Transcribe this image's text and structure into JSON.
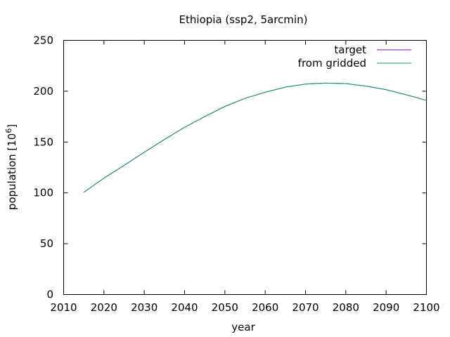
{
  "chart_data": {
    "type": "line",
    "title": "Ethiopia (ssp2, 5arcmin)",
    "xlabel": "year",
    "ylabel_main": "population [10",
    "ylabel_exp": "6",
    "ylabel_close": "]",
    "xlim": [
      2010,
      2100
    ],
    "ylim": [
      0,
      250
    ],
    "xticks": [
      2010,
      2020,
      2030,
      2040,
      2050,
      2060,
      2070,
      2080,
      2090,
      2100
    ],
    "yticks": [
      0,
      50,
      100,
      150,
      200,
      250
    ],
    "legend_position": "top-right",
    "grid": false,
    "series": [
      {
        "name": "target",
        "color": "#9400d3",
        "x": [
          2015,
          2020,
          2025,
          2030,
          2035,
          2040,
          2045,
          2050,
          2055,
          2060,
          2065,
          2070,
          2075,
          2080,
          2085,
          2090,
          2095,
          2100
        ],
        "y": [
          100.5,
          114.5,
          127,
          140,
          152.5,
          164.5,
          175,
          185,
          193,
          199,
          204,
          207,
          208,
          207.5,
          205,
          201.5,
          196.5,
          191
        ]
      },
      {
        "name": "from gridded",
        "color": "#009e73",
        "x": [
          2015,
          2020,
          2025,
          2030,
          2035,
          2040,
          2045,
          2050,
          2055,
          2060,
          2065,
          2070,
          2075,
          2080,
          2085,
          2090,
          2095,
          2100
        ],
        "y": [
          100.5,
          114.5,
          127,
          140,
          152.5,
          164.5,
          175,
          185,
          193,
          199,
          204,
          207,
          208,
          207.5,
          205,
          201.5,
          196.5,
          191
        ]
      }
    ]
  }
}
